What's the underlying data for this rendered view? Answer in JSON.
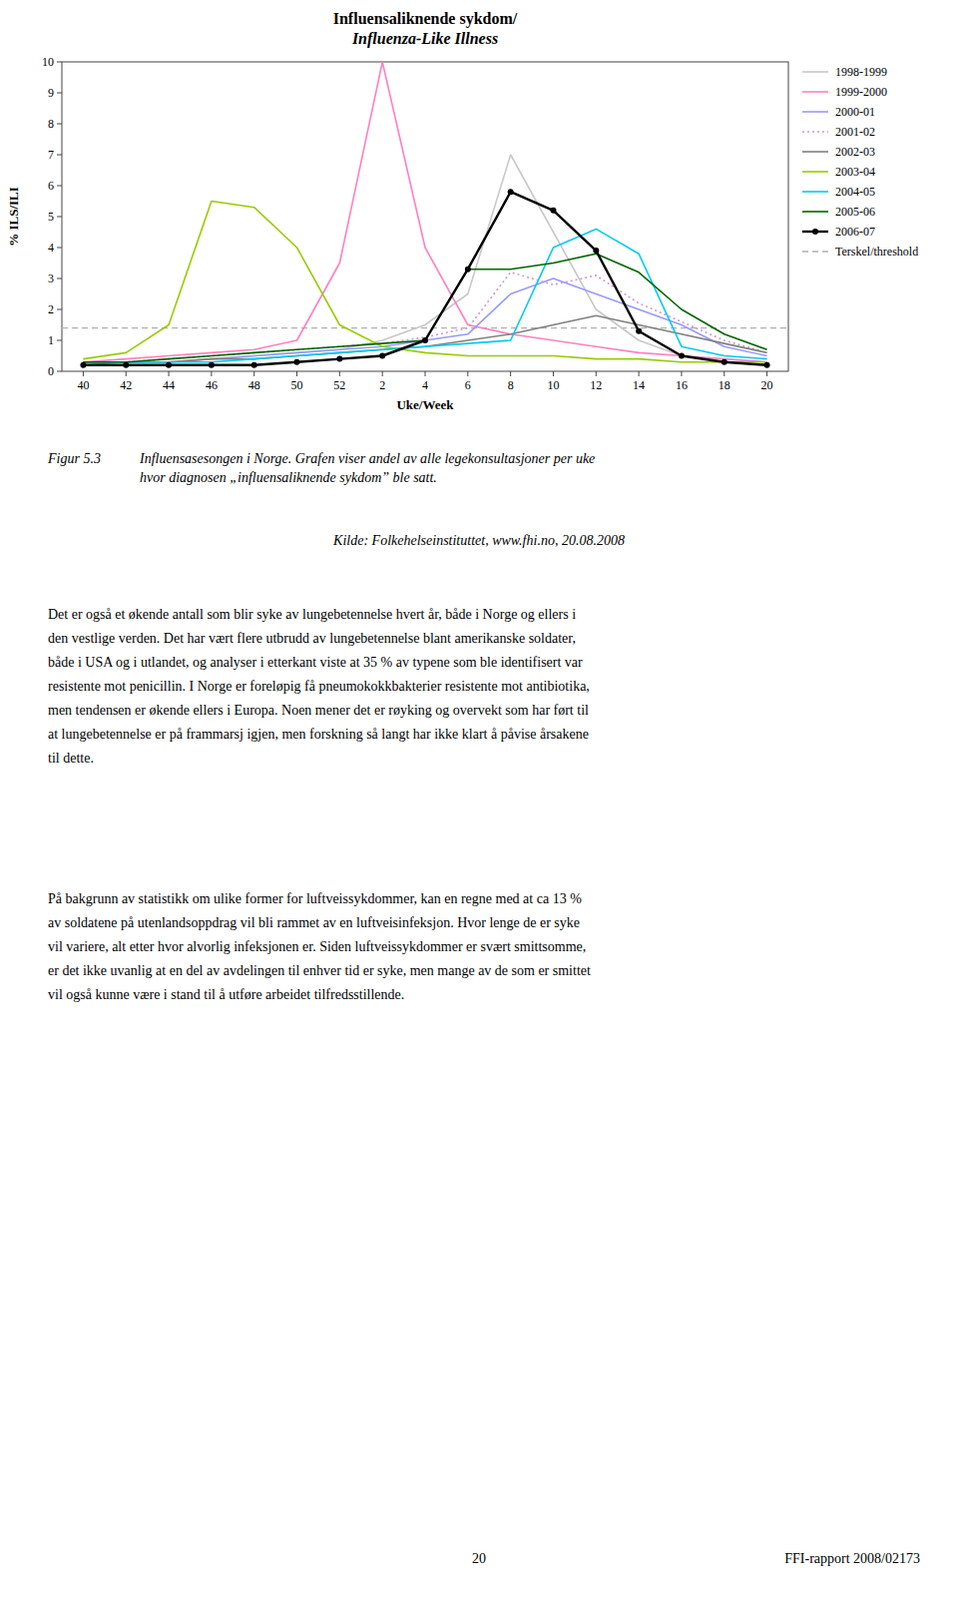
{
  "chart_data": {
    "type": "line",
    "title": "Influensaliknende sykdom/",
    "subtitle": "Influenza-Like Illness",
    "x_label": "Uke/Week",
    "y_label": "% ILS/ILI",
    "categories": [
      "40",
      "42",
      "44",
      "46",
      "48",
      "50",
      "52",
      "2",
      "4",
      "6",
      "8",
      "10",
      "12",
      "14",
      "16",
      "18",
      "20"
    ],
    "ylim": [
      0,
      10
    ],
    "yticks": [
      0,
      1,
      2,
      3,
      4,
      5,
      6,
      7,
      8,
      9,
      10
    ],
    "grid": false,
    "legend": "right",
    "series": [
      {
        "name": "1998-1999",
        "color": "#c8c8c8",
        "line_style": "solid",
        "values": [
          0.3,
          0.3,
          0.3,
          0.4,
          0.5,
          0.6,
          0.7,
          1.0,
          1.5,
          2.5,
          7.0,
          4.5,
          2.0,
          1.0,
          0.5,
          0.3,
          0.2
        ]
      },
      {
        "name": "1999-2000",
        "color": "#ff80c0",
        "line_style": "solid",
        "values": [
          0.3,
          0.4,
          0.5,
          0.6,
          0.7,
          1.0,
          3.5,
          10.0,
          4.0,
          1.5,
          1.2,
          1.0,
          0.8,
          0.6,
          0.5,
          0.4,
          0.3
        ]
      },
      {
        "name": "2000-01",
        "color": "#9999ff",
        "line_style": "solid",
        "values": [
          0.3,
          0.3,
          0.3,
          0.4,
          0.5,
          0.6,
          0.7,
          0.8,
          1.0,
          1.2,
          2.5,
          3.0,
          2.5,
          2.0,
          1.5,
          0.8,
          0.5
        ]
      },
      {
        "name": "2001-02",
        "color": "#cc99cc",
        "line_style": "dotted",
        "values": [
          0.3,
          0.3,
          0.4,
          0.5,
          0.6,
          0.7,
          0.8,
          0.9,
          1.1,
          1.4,
          3.2,
          2.8,
          3.1,
          2.2,
          1.6,
          1.0,
          0.6
        ]
      },
      {
        "name": "2002-03",
        "color": "#808080",
        "line_style": "solid",
        "values": [
          0.3,
          0.3,
          0.3,
          0.4,
          0.4,
          0.5,
          0.6,
          0.7,
          0.8,
          1.0,
          1.2,
          1.5,
          1.8,
          1.5,
          1.2,
          0.9,
          0.6
        ]
      },
      {
        "name": "2003-04",
        "color": "#99cc00",
        "line_style": "solid",
        "values": [
          0.4,
          0.6,
          1.5,
          5.5,
          5.3,
          4.0,
          1.5,
          0.8,
          0.6,
          0.5,
          0.5,
          0.5,
          0.4,
          0.4,
          0.3,
          0.3,
          0.3
        ]
      },
      {
        "name": "2004-05",
        "color": "#00ccee",
        "line_style": "solid",
        "values": [
          0.2,
          0.3,
          0.3,
          0.3,
          0.4,
          0.5,
          0.6,
          0.7,
          0.8,
          0.9,
          1.0,
          4.0,
          4.6,
          3.8,
          0.8,
          0.5,
          0.4
        ]
      },
      {
        "name": "2005-06",
        "color": "#006600",
        "line_style": "solid",
        "values": [
          0.3,
          0.3,
          0.4,
          0.5,
          0.6,
          0.7,
          0.8,
          0.9,
          1.0,
          3.3,
          3.3,
          3.5,
          3.8,
          3.2,
          2.0,
          1.2,
          0.7
        ]
      },
      {
        "name": "2006-07",
        "color": "#000000",
        "line_style": "solid",
        "marker": "circle",
        "values": [
          0.2,
          0.2,
          0.2,
          0.2,
          0.2,
          0.3,
          0.4,
          0.5,
          1.0,
          3.3,
          5.8,
          5.2,
          3.9,
          1.3,
          0.5,
          0.3,
          0.2
        ]
      }
    ],
    "threshold": {
      "name": "Terskel/threshold",
      "value": 1.4,
      "color": "#b0b0b0",
      "line_style": "dashed"
    },
    "annotations": [
      "Figur 5.3",
      "Influensasesongen i Norge. Grafen viser andel av alle legekonsultasjoner per uke\nhvor diagnosen „influensaliknende sykdom” ble satt.",
      "Kilde: Folkehelseinstituttet, www.fhi.no, 20.08.2008",
      "Det er også et økende antall som blir syke av lungebetennelse hvert år, både i Norge og ellers i\nden vestlige verden. Det har vært flere utbrudd av lungebetennelse blant amerikanske soldater,\nbåde i USA og i utlandet, og analyser i etterkant viste at 35 % av typene som ble identifisert var\nresistente mot penicillin. I Norge er foreløpig få pneumokokkbakterier resistente mot antibiotika,\nmen tendensen er økende ellers i Europa. Noen mener det er røyking og overvekt som har ført til\nat lungebetennelse er på frammarsj igjen, men forskning så langt har ikke klart å påvise årsakene\ntil dette.",
      "På bakgrunn av statistikk om ulike former for luftveissykdommer, kan en regne med at ca 13 %\nav soldatene på utenlandsoppdrag vil bli rammet av en luftveisinfeksjon. Hvor lenge de er syke\nvil variere, alt etter hvor alvorlig infeksjonen er. Siden luftveissykdommer er svært smittsomme,\ner det ikke uvanlig at en del av avdelingen til enhver tid er syke, men mange av de som er smittet\nvil også kunne være i stand til å utføre arbeidet tilfredsstillende.",
      "20",
      "FFI-rapport 2008/02173"
    ]
  }
}
